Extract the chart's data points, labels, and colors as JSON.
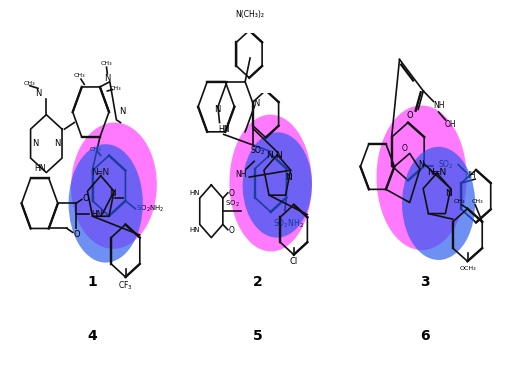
{
  "background_color": "#ffffff",
  "compounds": [
    "1",
    "2",
    "3",
    "4",
    "5",
    "6"
  ],
  "label_fontsize": 10,
  "label_fontweight": "bold",
  "structure_color": "#111111",
  "line_width": 1.2,
  "pink_color": "#ff33ff",
  "pink_alpha": 0.65,
  "blue_color": "#2255ee",
  "blue_alpha": 0.65
}
